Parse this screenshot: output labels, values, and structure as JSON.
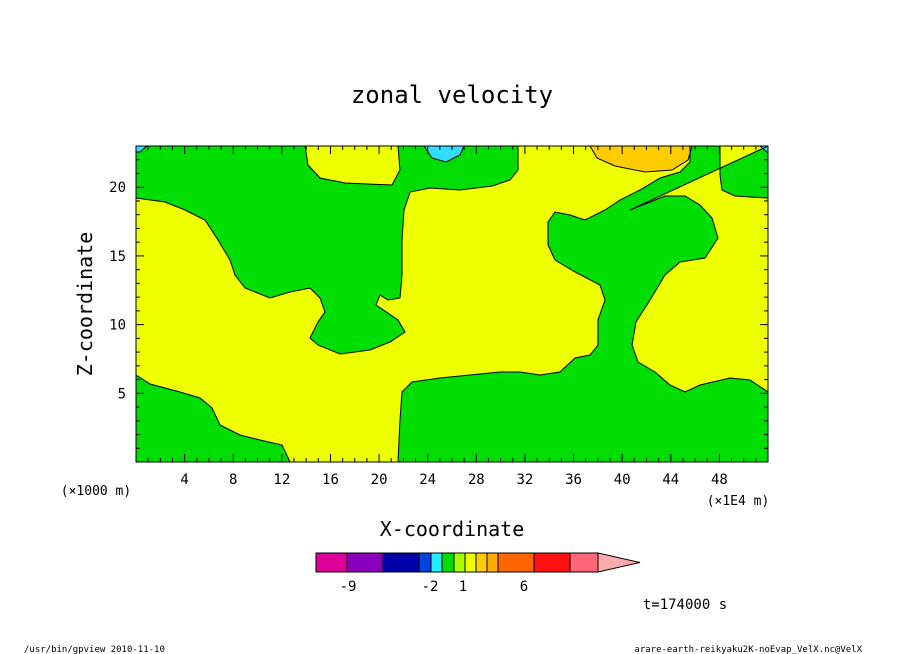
{
  "chart_data": {
    "type": "heatmap",
    "title": "zonal velocity",
    "xlabel": "X-coordinate",
    "ylabel": "Z-coordinate",
    "x_units": "(×1000 m)",
    "x_scale_note": "(×1E4 m)",
    "xlim": [
      0,
      52
    ],
    "ylim": [
      0,
      23
    ],
    "x_ticks": [
      "4",
      "8",
      "12",
      "16",
      "20",
      "24",
      "28",
      "32",
      "36",
      "40",
      "44",
      "48"
    ],
    "x_tick_values": [
      4,
      8,
      12,
      16,
      20,
      24,
      28,
      32,
      36,
      40,
      44,
      48
    ],
    "y_ticks": [
      "5",
      "10",
      "15",
      "20"
    ],
    "y_tick_values": [
      5,
      10,
      15,
      20
    ],
    "colors": {
      "green": "#00dd00",
      "yellow": "#eeff00",
      "cyan": "#33ddff",
      "orange": "#ffcc00"
    },
    "colorbar": {
      "colors": [
        "#dd0099",
        "#8800bb",
        "#0000aa",
        "#0044dd",
        "#22eeff",
        "#00dd00",
        "#aaff00",
        "#eeff00",
        "#ffcc00",
        "#ffaa00",
        "#ff6600",
        "#ff1111",
        "#ff6677",
        "#ffaaaa"
      ],
      "labels": [
        "-9",
        "-2",
        "1",
        "6"
      ]
    },
    "time_label": "t=174000 s"
  },
  "footer": {
    "left": "/usr/bin/gpview  2010-11-10",
    "right": "arare-earth-reikyaku2K-noEvap_VelX.nc@VelX"
  }
}
